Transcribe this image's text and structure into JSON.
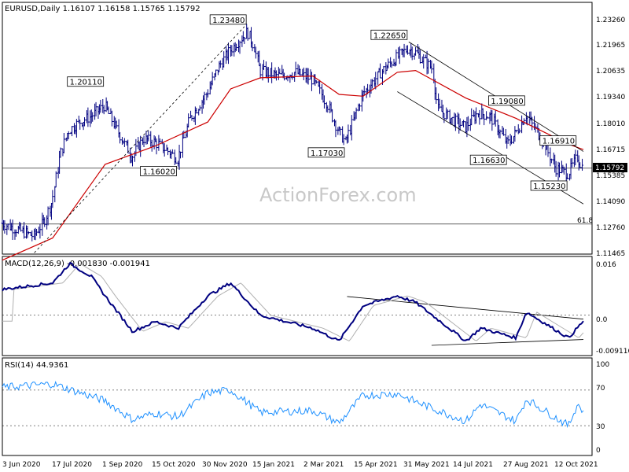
{
  "watermark": "ActionForex.com",
  "main_title": "EURUSD,Daily  1.16107 1.16158 1.15765 1.15792",
  "macd_title": "MACD(12,26,9) -0.001830 -0.001941",
  "rsi_title": "RSI(14) 44.9361",
  "fib_label": "61.8",
  "current_price_label": "1.15792",
  "x_tick_labels": [
    "3 Jun 2020",
    "17 Jul 2020",
    "1 Sep 2020",
    "15 Oct 2020",
    "30 Nov 2020",
    "15 Jan 2021",
    "2 Mar 2021",
    "15 Apr 2021",
    "31 May 2021",
    "14 Jul 2021",
    "27 Aug 2021",
    "12 Oct 2021"
  ],
  "price_axis_labels": [
    "1.23260",
    "1.21965",
    "1.20635",
    "1.19340",
    "1.18010",
    "1.16715",
    "1.15385",
    "1.14090",
    "1.12760",
    "1.11465"
  ],
  "macd_axis_labels": [
    "0.016",
    "0.0",
    "-0.009116"
  ],
  "rsi_axis_labels": [
    "100",
    "70",
    "30",
    "0"
  ],
  "annotations": [
    "1.23480",
    "1.22650",
    "1.20110",
    "1.19080",
    "1.16910",
    "1.17030",
    "1.16630",
    "1.16020",
    "1.15230"
  ],
  "colors": {
    "bars": "#000080",
    "ma": "#cc0000",
    "macd": "#000080",
    "signal": "#b0b0b0",
    "rsi": "#1e90ff",
    "trend": "#000000",
    "grid": "#000000"
  },
  "chart_data": [
    {
      "type": "ohlc",
      "title": "EURUSD,Daily",
      "ohlc_last": {
        "open": 1.16107,
        "high": 1.16158,
        "low": 1.15765,
        "close": 1.15792
      },
      "ylim": [
        1.11,
        1.239
      ],
      "x": [
        "3 Jun 2020",
        "17 Jul 2020",
        "1 Sep 2020",
        "15 Oct 2020",
        "30 Nov 2020",
        "15 Jan 2021",
        "2 Mar 2021",
        "15 Apr 2021",
        "31 May 2021",
        "14 Jul 2021",
        "27 Aug 2021",
        "12 Oct 2021"
      ],
      "close_path": [
        [
          "3 Jun 2020",
          1.128
        ],
        [
          "15 Jun 2020",
          1.125
        ],
        [
          "1 Jul 2020",
          1.121
        ],
        [
          "10 Jul 2020",
          1.129
        ],
        [
          "17 Jul 2020",
          1.14
        ],
        [
          "24 Jul 2020",
          1.165
        ],
        [
          "31 Jul 2020",
          1.178
        ],
        [
          "10 Aug 2020",
          1.183
        ],
        [
          "20 Aug 2020",
          1.186
        ],
        [
          "1 Sep 2020",
          1.192
        ],
        [
          "10 Sep 2020",
          1.181
        ],
        [
          "25 Sep 2020",
          1.164
        ],
        [
          "5 Oct 2020",
          1.174
        ],
        [
          "15 Oct 2020",
          1.172
        ],
        [
          "25 Oct 2020",
          1.168
        ],
        [
          "4 Nov 2020",
          1.163
        ],
        [
          "15 Nov 2020",
          1.185
        ],
        [
          "30 Nov 2020",
          1.199
        ],
        [
          "10 Dec 2020",
          1.213
        ],
        [
          "20 Dec 2020",
          1.222
        ],
        [
          "4 Jan 2021",
          1.232
        ],
        [
          "10 Jan 2021",
          1.224
        ],
        [
          "15 Jan 2021",
          1.211
        ],
        [
          "1 Feb 2021",
          1.208
        ],
        [
          "15 Feb 2021",
          1.21
        ],
        [
          "2 Mar 2021",
          1.206
        ],
        [
          "15 Mar 2021",
          1.193
        ],
        [
          "25 Mar 2021",
          1.178
        ],
        [
          "31 Mar 2021",
          1.172
        ],
        [
          "15 Apr 2021",
          1.198
        ],
        [
          "1 May 2021",
          1.21
        ],
        [
          "15 May 2021",
          1.218
        ],
        [
          "25 May 2021",
          1.223
        ],
        [
          "31 May 2021",
          1.221
        ],
        [
          "15 Jun 2021",
          1.212
        ],
        [
          "20 Jun 2021",
          1.19
        ],
        [
          "1 Jul 2021",
          1.185
        ],
        [
          "14 Jul 2021",
          1.18
        ],
        [
          "25 Jul 2021",
          1.188
        ],
        [
          "5 Aug 2021",
          1.186
        ],
        [
          "20 Aug 2021",
          1.171
        ],
        [
          "27 Aug 2021",
          1.177
        ],
        [
          "5 Sep 2021",
          1.187
        ],
        [
          "20 Sep 2021",
          1.173
        ],
        [
          "1 Oct 2021",
          1.158
        ],
        [
          "12 Oct 2021",
          1.155
        ],
        [
          "20 Oct 2021",
          1.164
        ],
        [
          "25 Oct 2021",
          1.1579
        ]
      ],
      "ma_path": [
        [
          "3 Jun 2020",
          1.108
        ],
        [
          "17 Jul 2020",
          1.12
        ],
        [
          "1 Sep 2020",
          1.16
        ],
        [
          "15 Oct 2020",
          1.17
        ],
        [
          "30 Nov 2020",
          1.183
        ],
        [
          "20 Dec 2020",
          1.201
        ],
        [
          "15 Jan 2021",
          1.207
        ],
        [
          "2 Mar 2021",
          1.208
        ],
        [
          "25 Mar 2021",
          1.198
        ],
        [
          "15 Apr 2021",
          1.197
        ],
        [
          "15 May 2021",
          1.21
        ],
        [
          "31 May 2021",
          1.211
        ],
        [
          "14 Jul 2021",
          1.196
        ],
        [
          "27 Aug 2021",
          1.185
        ],
        [
          "12 Oct 2021",
          1.171
        ],
        [
          "25 Oct 2021",
          1.168
        ]
      ],
      "annotations": [
        {
          "date": "4 Jan 2021",
          "value": 1.2348,
          "label": "1.23480"
        },
        {
          "date": "25 May 2021",
          "value": 1.2265,
          "label": "1.22650"
        },
        {
          "date": "1 Sep 2020",
          "value": 1.2011,
          "label": "1.20110"
        },
        {
          "date": "5 Sep 2021",
          "value": 1.1908,
          "label": "1.19080"
        },
        {
          "date": "20 Oct 2021",
          "value": 1.1691,
          "label": "1.16910"
        },
        {
          "date": "31 Mar 2021",
          "value": 1.1703,
          "label": "1.17030"
        },
        {
          "date": "20 Aug 2021",
          "value": 1.1663,
          "label": "1.16630"
        },
        {
          "date": "4 Nov 2020",
          "value": 1.1602,
          "label": "1.16020"
        },
        {
          "date": "12 Oct 2021",
          "value": 1.1523,
          "label": "1.15230"
        }
      ],
      "horizontal_lines": [
        {
          "value": 1.1579,
          "label": "1.15792"
        },
        {
          "value": 1.1276,
          "label": "61.8"
        }
      ]
    },
    {
      "type": "line",
      "title": "MACD(12,26,9)",
      "values_last": {
        "macd": -0.00183,
        "signal": -0.001941
      },
      "ylim": [
        -0.0115,
        0.0165
      ],
      "macd_path": [
        [
          "3 Jun 2020",
          0.008
        ],
        [
          "17 Jul 2020",
          0.01
        ],
        [
          "1 Aug 2020",
          0.016
        ],
        [
          "20 Aug 2020",
          0.012
        ],
        [
          "1 Sep 2020",
          0.006
        ],
        [
          "25 Sep 2020",
          -0.005
        ],
        [
          "15 Oct 2020",
          -0.002
        ],
        [
          "4 Nov 2020",
          -0.004
        ],
        [
          "30 Nov 2020",
          0.006
        ],
        [
          "20 Dec 2020",
          0.01
        ],
        [
          "15 Jan 2021",
          0.0
        ],
        [
          "2 Mar 2021",
          -0.004
        ],
        [
          "25 Mar 2021",
          -0.008
        ],
        [
          "15 Apr 2021",
          0.003
        ],
        [
          "15 May 2021",
          0.006
        ],
        [
          "31 May 2021",
          0.004
        ],
        [
          "14 Jul 2021",
          -0.008
        ],
        [
          "27 Jul 2021",
          -0.004
        ],
        [
          "27 Aug 2021",
          -0.007
        ],
        [
          "5 Sep 2021",
          0.001
        ],
        [
          "12 Oct 2021",
          -0.007
        ],
        [
          "25 Oct 2021",
          -0.0018
        ]
      ]
    },
    {
      "type": "line",
      "title": "RSI(14)",
      "value_last": 44.9361,
      "ylim": [
        0,
        100
      ],
      "levels": [
        30,
        70
      ],
      "rsi_path": [
        [
          "3 Jun 2020",
          73
        ],
        [
          "17 Jul 2020",
          77
        ],
        [
          "1 Sep 2020",
          58
        ],
        [
          "25 Sep 2020",
          37
        ],
        [
          "15 Oct 2020",
          44
        ],
        [
          "4 Nov 2020",
          40
        ],
        [
          "30 Nov 2020",
          67
        ],
        [
          "20 Dec 2020",
          70
        ],
        [
          "15 Jan 2021",
          45
        ],
        [
          "2 Mar 2021",
          47
        ],
        [
          "25 Mar 2021",
          33
        ],
        [
          "15 Apr 2021",
          64
        ],
        [
          "15 May 2021",
          66
        ],
        [
          "31 May 2021",
          57
        ],
        [
          "14 Jul 2021",
          35
        ],
        [
          "27 Jul 2021",
          54
        ],
        [
          "27 Aug 2021",
          35
        ],
        [
          "5 Sep 2021",
          60
        ],
        [
          "12 Oct 2021",
          30
        ],
        [
          "20 Oct 2021",
          55
        ],
        [
          "25 Oct 2021",
          45
        ]
      ]
    }
  ]
}
